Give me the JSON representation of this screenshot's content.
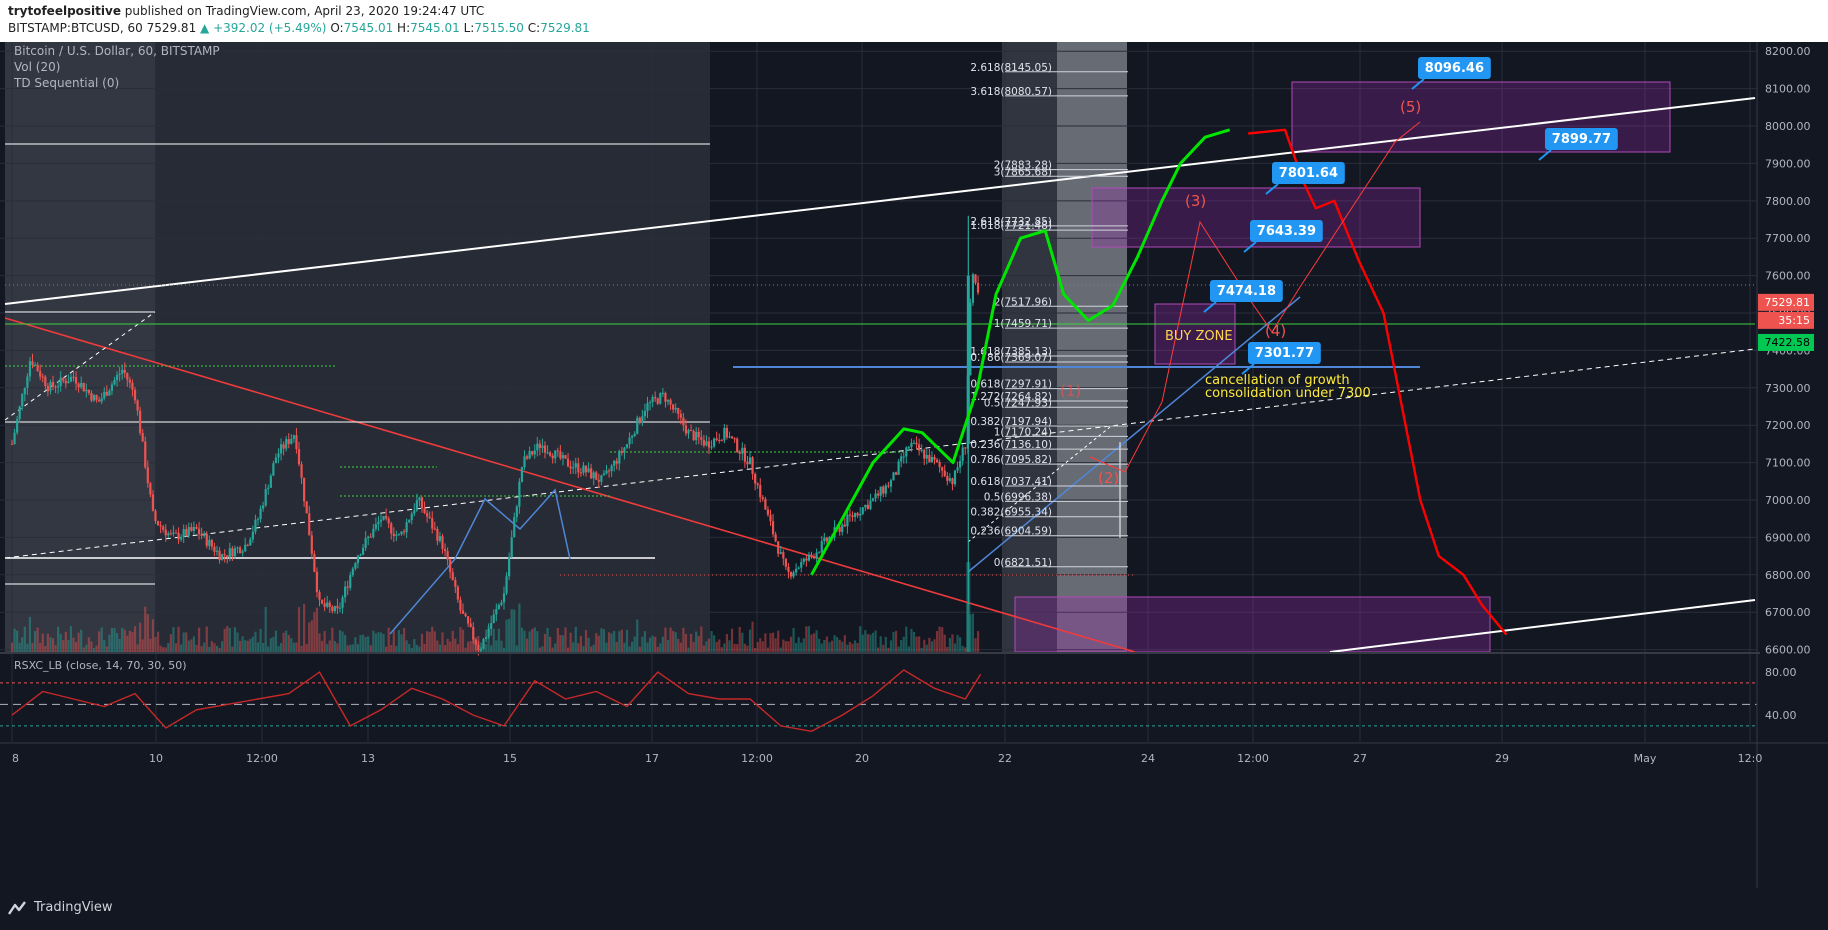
{
  "header": {
    "author": "trytofeelpositive",
    "published": "published on TradingView.com, April 23, 2020 19:24:47 UTC",
    "symbol": "BITSTAMP:BTCUSD, 60",
    "last": "7529.81",
    "change": "▲ +392.02 (+5.49%)",
    "o_label": "O:",
    "o": "7545.01",
    "h_label": "H:",
    "h": "7545.01",
    "l_label": "L:",
    "l": "7515.50",
    "c_label": "C:",
    "c": "7529.81"
  },
  "legend": {
    "line1": "Bitcoin / U.S. Dollar, 60, BITSTAMP",
    "line2": "Vol (20)",
    "line3": "TD Sequential (0)",
    "rsi": "RSXC_LB (close, 14, 70, 30, 50)"
  },
  "footer": {
    "brand": "TradingView"
  },
  "colors": {
    "background": "#131722",
    "up": "#26a69a",
    "down": "#ef5350",
    "accent_blue": "#2196f3",
    "green_path": "#00e600",
    "red_path": "#ff0000",
    "zone": "#9c27b0",
    "price_marker_red": "#ef5350",
    "price_marker_green": "#00c853"
  },
  "chart_data": {
    "type": "line",
    "title": "Bitcoin / U.S. Dollar, 60, BITSTAMP",
    "x_ticks": [
      "8",
      "10",
      "12:00",
      "13",
      "15",
      "17",
      "12:00",
      "20",
      "22",
      "24",
      "12:00",
      "27",
      "29",
      "May",
      "12:0"
    ],
    "y_ticks": [
      6600,
      6700,
      6800,
      6900,
      7000,
      7100,
      7200,
      7300,
      7400,
      7500,
      7600,
      7700,
      7800,
      7900,
      8000,
      8100,
      8200
    ],
    "y_tick_labels": [
      "6600.00",
      "6700.00",
      "6800.00",
      "6900.00",
      "7000.00",
      "7100.00",
      "7200.00",
      "7300.00",
      "7400.00",
      "7500.00",
      "7600.00",
      "7700.00",
      "7800.00",
      "7900.00",
      "8000.00",
      "8100.00",
      "8200.00"
    ],
    "ylim": [
      6500,
      8230
    ],
    "price_series": {
      "name": "BTCUSD",
      "x_day": [
        8.0,
        8.3,
        8.6,
        9.0,
        9.4,
        9.8,
        10.0,
        10.3,
        10.6,
        11.0,
        11.4,
        11.8,
        12.0,
        12.3,
        12.6,
        13.0,
        13.3,
        13.6,
        14.0,
        14.3,
        14.6,
        15.0,
        15.3,
        15.6,
        16.0,
        16.3,
        16.6,
        17.0,
        17.3,
        17.6,
        18.0,
        18.3,
        18.6,
        19.0,
        19.3,
        19.6,
        20.0,
        20.3,
        20.6,
        21.0,
        21.3,
        21.6,
        22.0,
        22.3,
        22.6,
        23.0,
        23.3,
        23.5,
        23.6,
        23.75
      ],
      "close": [
        7150,
        7380,
        7300,
        7330,
        7260,
        7350,
        7280,
        6950,
        6900,
        6920,
        6850,
        6880,
        6950,
        7120,
        7180,
        6720,
        6700,
        6850,
        6950,
        6900,
        7000,
        6880,
        6700,
        6600,
        6750,
        7100,
        7150,
        7100,
        7080,
        7050,
        7150,
        7250,
        7280,
        7180,
        7150,
        7180,
        7100,
        6950,
        6800,
        6850,
        6900,
        6950,
        7000,
        7050,
        7150,
        7100,
        7050,
        7150,
        7600,
        7529.81
      ]
    },
    "rsi": {
      "name": "RSXC_LB",
      "levels": [
        70,
        50,
        30
      ],
      "tick_labels": [
        "80.00",
        "40.00"
      ],
      "x_day": [
        8.0,
        8.5,
        9.0,
        9.5,
        10.0,
        10.5,
        11.0,
        11.5,
        12.0,
        12.5,
        13.0,
        13.5,
        14.0,
        14.5,
        15.0,
        15.5,
        16.0,
        16.5,
        17.0,
        17.5,
        18.0,
        18.5,
        19.0,
        19.5,
        20.0,
        20.5,
        21.0,
        21.5,
        22.0,
        22.5,
        23.0,
        23.5,
        23.75
      ],
      "values": [
        40,
        62,
        55,
        48,
        60,
        28,
        45,
        50,
        55,
        60,
        80,
        30,
        45,
        65,
        55,
        40,
        30,
        72,
        55,
        62,
        48,
        80,
        60,
        55,
        55,
        30,
        25,
        40,
        58,
        82,
        65,
        55,
        78
      ]
    },
    "fib_levels": [
      {
        "label": "2.618(8145.05)",
        "price": 8145.05
      },
      {
        "label": "3.618(8080.57)",
        "price": 8080.57
      },
      {
        "label": "2(7883.28)",
        "price": 7883.28
      },
      {
        "label": "3(7865.68)",
        "price": 7865.68
      },
      {
        "label": "2.618(7732.85)",
        "price": 7732.85
      },
      {
        "label": "1.618(7721.48)",
        "price": 7721.48
      },
      {
        "label": "2(7517.96)",
        "price": 7517.96
      },
      {
        "label": "1(7459.71)",
        "price": 7459.71
      },
      {
        "label": "1.618(7385.13)",
        "price": 7385.13
      },
      {
        "label": "0.786(7369.07)",
        "price": 7369.07
      },
      {
        "label": "0.618(7297.91)",
        "price": 7297.91
      },
      {
        "label": "1.272(7264.82)",
        "price": 7264.82
      },
      {
        "label": "0.5(7247.93)",
        "price": 7247.93
      },
      {
        "label": "0.382(7197.94)",
        "price": 7197.94
      },
      {
        "label": "1(7170.24)",
        "price": 7170.24
      },
      {
        "label": "0.236(7136.10)",
        "price": 7136.1
      },
      {
        "label": "0.786(7095.82)",
        "price": 7095.82
      },
      {
        "label": "0.618(7037.41)",
        "price": 7037.41
      },
      {
        "label": "0.5(6996.38)",
        "price": 6996.38
      },
      {
        "label": "0.382(6955.34)",
        "price": 6955.34
      },
      {
        "label": "0.236(6904.59)",
        "price": 6904.59
      },
      {
        "label": "0(6821.51)",
        "price": 6821.51
      }
    ],
    "callouts": [
      {
        "label": "8096.46",
        "price": 8096.46
      },
      {
        "label": "7899.77",
        "price": 7899.77
      },
      {
        "label": "7801.64",
        "price": 7801.64
      },
      {
        "label": "7643.39",
        "price": 7643.39
      },
      {
        "label": "7474.18",
        "price": 7474.18
      },
      {
        "label": "7301.77",
        "price": 7301.77
      }
    ],
    "wave_labels": [
      "(1)",
      "(2)",
      "(3)",
      "(4)",
      "(5)"
    ],
    "annotations": {
      "buy_zone": "BUY ZONE",
      "note1": "cancellation of growth",
      "note2": "consolidation under 7300"
    },
    "price_markers": [
      {
        "label": "7529.81",
        "price": 7529.81
      },
      {
        "label": "35:15",
        "price": 7490
      },
      {
        "label": "7422.58",
        "price": 7422.58
      }
    ],
    "green_projection": {
      "x_day": [
        21.0,
        21.5,
        22.0,
        22.5,
        22.8,
        23.3,
        23.7,
        24.0,
        24.4,
        24.8,
        25.1,
        25.5,
        25.9,
        26.3,
        26.7,
        27.0,
        27.4,
        27.8
      ],
      "price": [
        6800,
        6950,
        7100,
        7190,
        7180,
        7100,
        7300,
        7550,
        7700,
        7720,
        7550,
        7480,
        7520,
        7650,
        7800,
        7900,
        7970,
        7990
      ]
    },
    "red_projection": {
      "x_day": [
        28.1,
        28.7,
        29.0,
        29.2,
        29.5,
        29.9,
        30.3,
        30.6,
        30.9,
        31.2,
        31.6,
        31.9,
        32.3
      ],
      "price": [
        7980,
        7990,
        7850,
        7780,
        7800,
        7640,
        7500,
        7250,
        7000,
        6850,
        6800,
        6720,
        6640
      ]
    }
  }
}
